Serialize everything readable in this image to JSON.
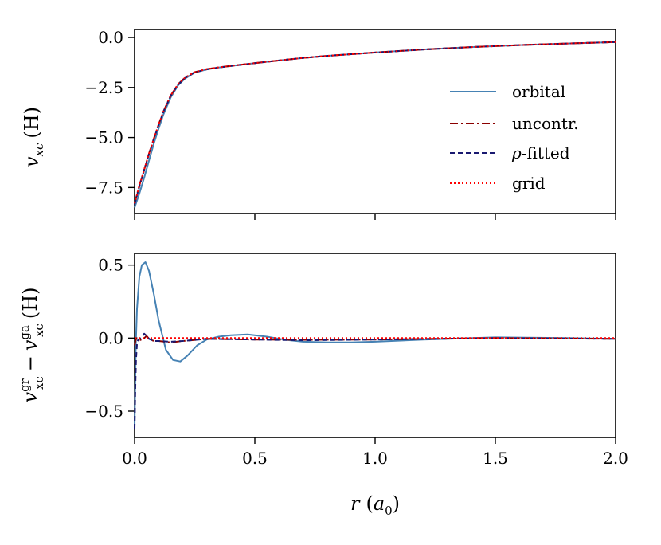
{
  "chart_data": [
    {
      "type": "line",
      "panel": "top",
      "xlim": [
        0.0,
        2.0
      ],
      "ylim": [
        -8.8,
        0.4
      ],
      "xticks": [
        0.0,
        0.5,
        1.0,
        1.5,
        2.0
      ],
      "yticks": [
        0.0,
        -2.5,
        -5.0,
        -7.5
      ],
      "ytick_labels": [
        "0.0",
        "−2.5",
        "−5.0",
        "−7.5"
      ],
      "ylabel": {
        "symbol": "v",
        "subscript": "xc",
        "unit": "(H)"
      },
      "legend": {
        "placement": "center-right",
        "entries": [
          "orbital",
          "uncontr.",
          "fitted",
          "grid"
        ],
        "fitted_prefix": "ρ-"
      },
      "series": [
        {
          "name": "orbital",
          "color": "#4682b4",
          "style": "solid",
          "x": [
            0.0,
            0.01,
            0.02,
            0.04,
            0.06,
            0.08,
            0.1,
            0.12,
            0.15,
            0.18,
            0.21,
            0.25,
            0.3,
            0.35,
            0.4,
            0.5,
            0.6,
            0.7,
            0.8,
            1.0,
            1.2,
            1.4,
            1.6,
            1.8,
            2.0
          ],
          "y": [
            -8.5,
            -8.15,
            -7.8,
            -7.0,
            -6.15,
            -5.3,
            -4.55,
            -3.85,
            -3.0,
            -2.4,
            -2.05,
            -1.75,
            -1.6,
            -1.5,
            -1.42,
            -1.28,
            -1.15,
            -1.02,
            -0.92,
            -0.75,
            -0.6,
            -0.48,
            -0.38,
            -0.3,
            -0.23
          ]
        },
        {
          "name": "uncontr.",
          "color": "#8b0000",
          "style": "dashdot",
          "x": [
            0.0,
            0.01,
            0.02,
            0.04,
            0.06,
            0.08,
            0.1,
            0.12,
            0.15,
            0.18,
            0.21,
            0.25,
            0.3,
            0.35,
            0.4,
            0.5,
            0.6,
            0.7,
            0.8,
            1.0,
            1.2,
            1.4,
            1.6,
            1.8,
            2.0
          ],
          "y": [
            -8.3,
            -7.85,
            -7.4,
            -6.6,
            -5.8,
            -5.05,
            -4.35,
            -3.7,
            -2.9,
            -2.35,
            -2.0,
            -1.73,
            -1.58,
            -1.49,
            -1.42,
            -1.28,
            -1.15,
            -1.02,
            -0.92,
            -0.75,
            -0.6,
            -0.48,
            -0.38,
            -0.3,
            -0.23
          ]
        },
        {
          "name": "fitted",
          "color": "#191970",
          "style": "dashed",
          "x": [
            0.0,
            0.01,
            0.02,
            0.04,
            0.06,
            0.08,
            0.1,
            0.12,
            0.15,
            0.18,
            0.21,
            0.25,
            0.3,
            0.35,
            0.4,
            0.5,
            0.6,
            0.7,
            0.8,
            1.0,
            1.2,
            1.4,
            1.6,
            1.8,
            2.0
          ],
          "y": [
            -8.35,
            -7.9,
            -7.45,
            -6.62,
            -5.82,
            -5.07,
            -4.37,
            -3.72,
            -2.92,
            -2.37,
            -2.02,
            -1.74,
            -1.59,
            -1.5,
            -1.43,
            -1.28,
            -1.15,
            -1.02,
            -0.92,
            -0.75,
            -0.6,
            -0.48,
            -0.38,
            -0.3,
            -0.23
          ]
        },
        {
          "name": "grid",
          "color": "#ff0000",
          "style": "dotted",
          "x": [
            0.0,
            0.01,
            0.02,
            0.04,
            0.06,
            0.08,
            0.1,
            0.12,
            0.15,
            0.18,
            0.21,
            0.25,
            0.3,
            0.35,
            0.4,
            0.5,
            0.6,
            0.7,
            0.8,
            1.0,
            1.2,
            1.4,
            1.6,
            1.8,
            2.0
          ],
          "y": [
            -8.3,
            -7.85,
            -7.4,
            -6.6,
            -5.8,
            -5.05,
            -4.35,
            -3.7,
            -2.9,
            -2.35,
            -2.0,
            -1.73,
            -1.58,
            -1.49,
            -1.42,
            -1.28,
            -1.15,
            -1.02,
            -0.92,
            -0.75,
            -0.6,
            -0.48,
            -0.38,
            -0.3,
            -0.23
          ]
        }
      ]
    },
    {
      "type": "line",
      "panel": "bottom",
      "xlim": [
        0.0,
        2.0
      ],
      "ylim": [
        -0.68,
        0.58
      ],
      "xticks": [
        0.0,
        0.5,
        1.0,
        1.5,
        2.0
      ],
      "xtick_labels": [
        "0.0",
        "0.5",
        "1.0",
        "1.5",
        "2.0"
      ],
      "yticks": [
        0.5,
        0.0,
        -0.5
      ],
      "ytick_labels": [
        "0.5",
        "0.0",
        "−0.5"
      ],
      "xlabel": {
        "symbol": "r",
        "open": "(",
        "var": "a",
        "sub": "0",
        "close": ")"
      },
      "ylabel": {
        "v": "v",
        "sup1": "gr",
        "sub1": "xc",
        "minus": "−",
        "sup2": "ga",
        "sub2": "xc",
        "unit": "(H)"
      },
      "series": [
        {
          "name": "orbital",
          "color": "#4682b4",
          "style": "solid",
          "x": [
            0.0,
            0.005,
            0.01,
            0.02,
            0.03,
            0.045,
            0.06,
            0.08,
            0.1,
            0.13,
            0.16,
            0.19,
            0.22,
            0.26,
            0.3,
            0.35,
            0.4,
            0.47,
            0.55,
            0.62,
            0.7,
            0.8,
            0.9,
            1.0,
            1.2,
            1.5,
            1.8,
            2.0
          ],
          "y": [
            -0.6,
            -0.05,
            0.2,
            0.42,
            0.5,
            0.52,
            0.46,
            0.3,
            0.12,
            -0.08,
            -0.15,
            -0.16,
            -0.12,
            -0.05,
            -0.01,
            0.01,
            0.02,
            0.025,
            0.01,
            -0.01,
            -0.025,
            -0.03,
            -0.03,
            -0.025,
            -0.01,
            0.005,
            0.0,
            -0.005
          ]
        },
        {
          "name": "uncontr.",
          "color": "#8b0000",
          "style": "dashdot",
          "x": [
            0.0,
            0.005,
            0.01,
            0.02,
            0.03,
            0.04,
            0.05,
            0.06,
            0.08,
            0.1,
            0.15,
            0.2,
            0.3,
            0.5,
            0.7,
            1.0,
            1.5,
            2.0
          ],
          "y": [
            -0.05,
            -0.01,
            0.0,
            -0.01,
            -0.015,
            0.0,
            0.015,
            -0.005,
            -0.02,
            -0.02,
            -0.03,
            -0.02,
            -0.005,
            -0.01,
            -0.012,
            -0.01,
            0.0,
            -0.005
          ]
        },
        {
          "name": "fitted",
          "color": "#191970",
          "style": "dashed",
          "x": [
            0.0,
            0.003,
            0.006,
            0.01,
            0.015,
            0.02,
            0.03,
            0.04,
            0.05,
            0.06,
            0.08,
            0.1,
            0.15,
            0.2,
            0.3,
            0.5,
            0.7,
            1.0,
            1.5,
            2.0
          ],
          "y": [
            -0.62,
            -0.35,
            -0.15,
            -0.04,
            -0.01,
            -0.005,
            0.01,
            0.03,
            0.015,
            -0.005,
            -0.02,
            -0.02,
            -0.025,
            -0.02,
            -0.005,
            -0.01,
            -0.015,
            -0.01,
            0.0,
            -0.005
          ]
        },
        {
          "name": "grid",
          "color": "#ff0000",
          "style": "dotted",
          "x": [
            0.0,
            2.0
          ],
          "y": [
            0.0,
            0.0
          ]
        }
      ]
    }
  ]
}
